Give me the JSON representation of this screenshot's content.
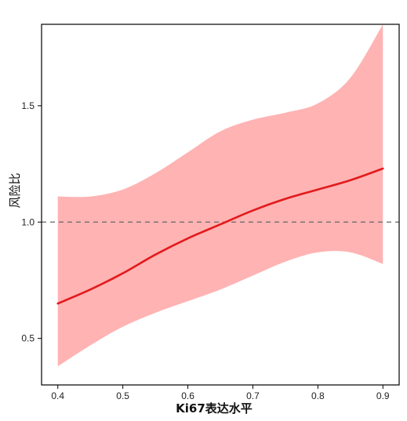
{
  "chart_data": {
    "type": "line",
    "title": "",
    "xlabel": "Ki67表达水平",
    "ylabel": "风险比",
    "xlim": [
      0.375,
      0.925
    ],
    "ylim": [
      0.3,
      1.85
    ],
    "xticks": [
      0.4,
      0.5,
      0.6,
      0.7,
      0.8,
      0.9
    ],
    "xtick_labels": [
      "0.4",
      "0.5",
      "0.6",
      "0.7",
      "0.8",
      "0.9"
    ],
    "yticks": [
      0.5,
      1.0,
      1.5
    ],
    "ytick_labels": [
      "0.5",
      "1.0",
      "1.5"
    ],
    "reference_line": {
      "y": 1.0,
      "style": "dashed",
      "color": "#666666"
    },
    "grid": false,
    "series": [
      {
        "x": [
          0.4,
          0.45,
          0.5,
          0.55,
          0.6,
          0.65,
          0.7,
          0.75,
          0.8,
          0.85,
          0.9
        ],
        "y": [
          0.65,
          0.71,
          0.78,
          0.86,
          0.93,
          0.99,
          1.05,
          1.1,
          1.14,
          1.18,
          1.23
        ],
        "lower": [
          0.38,
          0.47,
          0.55,
          0.61,
          0.66,
          0.71,
          0.77,
          0.83,
          0.87,
          0.87,
          0.82
        ],
        "upper": [
          1.11,
          1.11,
          1.14,
          1.21,
          1.3,
          1.39,
          1.44,
          1.47,
          1.51,
          1.62,
          1.85
        ],
        "line_color": "#e31a1c",
        "band_color": "#ffb3b3"
      }
    ]
  }
}
